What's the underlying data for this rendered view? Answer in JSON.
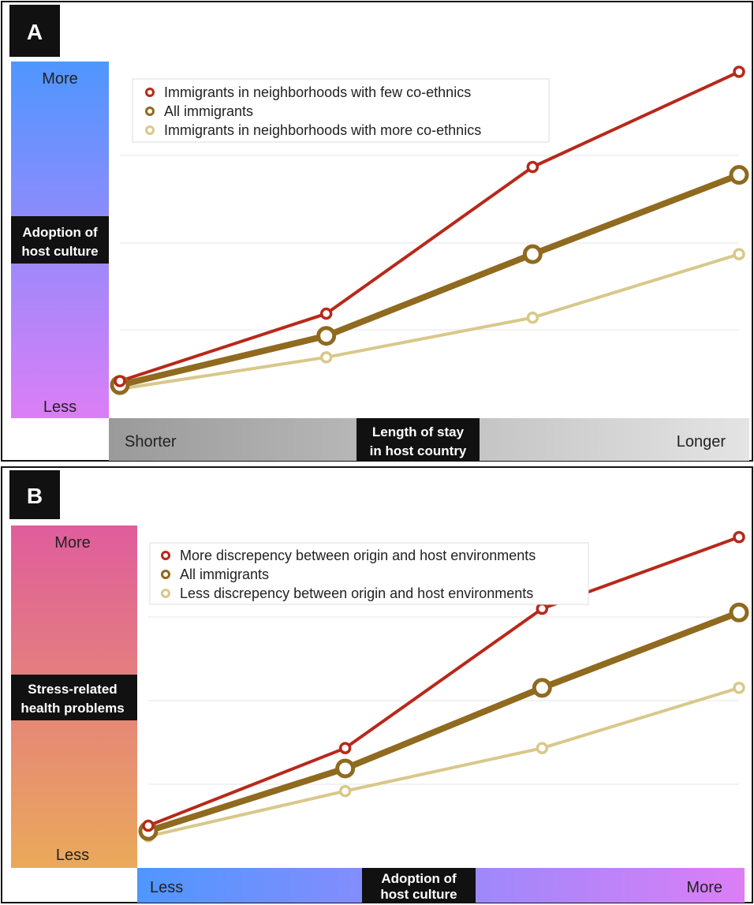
{
  "colors": {
    "series_few": "#b8281a",
    "series_all": "#8f6a1f",
    "series_more": "#d8c88a",
    "grid": "#e6e6e6"
  },
  "chart_data": [
    {
      "panel": "A",
      "type": "line",
      "ylabel": "Adoption of host culture",
      "y_tick_top": "More",
      "y_tick_bottom": "Less",
      "xlabel": "Length of stay in host country",
      "x_tick_left": "Shorter",
      "x_tick_right": "Longer",
      "x": [
        0,
        1,
        2,
        3
      ],
      "ylim": [
        0,
        4
      ],
      "grid": true,
      "legend_position": "top-left",
      "series": [
        {
          "name": "Immigrants in neighborhoods with few co-ethnics",
          "values": [
            0.05,
            0.9,
            2.75,
            3.95
          ]
        },
        {
          "name": "All immigrants",
          "values": [
            0.0,
            0.62,
            1.65,
            2.65
          ]
        },
        {
          "name": "Immigrants in neighborhoods with more co-ethnics",
          "values": [
            -0.05,
            0.35,
            0.85,
            1.65
          ]
        }
      ]
    },
    {
      "panel": "B",
      "type": "line",
      "ylabel": "Stress-related health problems",
      "y_tick_top": "More",
      "y_tick_bottom": "Less",
      "xlabel": "Adoption of host culture",
      "x_tick_left": "Less",
      "x_tick_right": "More",
      "x": [
        0,
        1,
        2,
        3
      ],
      "ylim": [
        0,
        4
      ],
      "grid": true,
      "legend_position": "top-left",
      "series": [
        {
          "name": "More discrepency between origin and host environments",
          "values": [
            0.12,
            1.15,
            3.0,
            3.95
          ]
        },
        {
          "name": "All immigrants",
          "values": [
            0.05,
            0.88,
            1.95,
            2.95
          ]
        },
        {
          "name": "Less discrepency between origin and host environments",
          "values": [
            -0.02,
            0.58,
            1.15,
            1.95
          ]
        }
      ]
    }
  ]
}
